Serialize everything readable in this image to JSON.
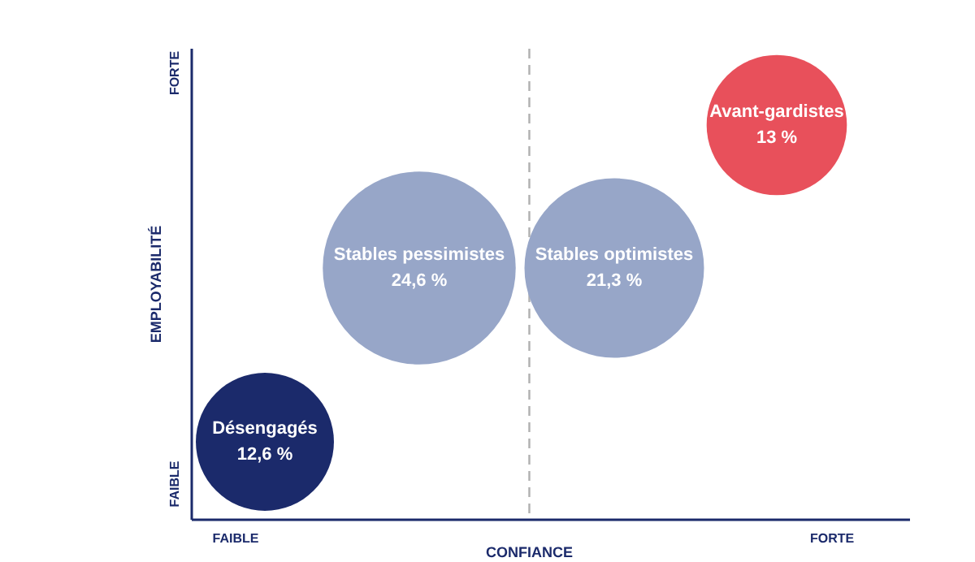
{
  "chart_data": {
    "type": "other",
    "xlabel": "CONFIANCE",
    "ylabel": "EMPLOYABILITÉ",
    "categories": [
      "Désengagés",
      "Stables pessimistes",
      "Stables optimistes",
      "Avant-gardistes"
    ],
    "values": [
      12.6,
      24.6,
      21.3,
      13
    ],
    "value_labels": [
      "12,6 %",
      "24,6 %",
      "21,3 %",
      "13 %"
    ],
    "colors": [
      "#1b2a6b",
      "#97a6c8",
      "#97a6c8",
      "#e8505b"
    ],
    "annotations": [
      "FAIBLE",
      "FORTE",
      "FAIBLE",
      "FORTE"
    ]
  }
}
